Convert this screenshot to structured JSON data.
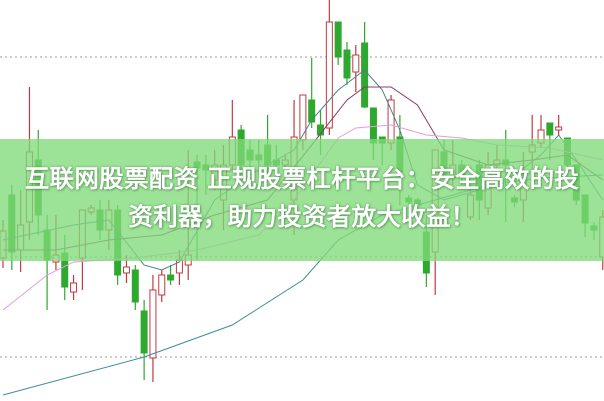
{
  "headline": {
    "line1": "互联网股票配资 正规股票杠杆平台：安全高效的投",
    "line2": "资利器，助力投资者放大收益！"
  },
  "colors": {
    "up": "#c0393f",
    "down": "#2ea82e",
    "banner": "#8fdc8a",
    "grid": "#999999",
    "ma_short": "#4f7f8f",
    "ma_mid": "#8a3a6a",
    "ma_pink": "#e59be0",
    "ma_long": "#3a8f9a"
  },
  "chart_data": {
    "type": "candlestick",
    "title": "",
    "grid": true,
    "ohlc_order": [
      "open",
      "high",
      "low",
      "close"
    ],
    "candles": [
      [
        142,
        180,
        132,
        169
      ],
      [
        205,
        215,
        130,
        148
      ],
      [
        150,
        210,
        128,
        175
      ],
      [
        178,
        313,
        160,
        248
      ],
      [
        240,
        270,
        165,
        185
      ],
      [
        170,
        185,
        90,
        140
      ],
      [
        138,
        185,
        130,
        145
      ],
      [
        147,
        165,
        100,
        113
      ],
      [
        108,
        125,
        100,
        117
      ],
      [
        142,
        190,
        110,
        190
      ],
      [
        188,
        195,
        185,
        192
      ],
      [
        190,
        200,
        160,
        170
      ],
      [
        170,
        200,
        150,
        190
      ],
      [
        190,
        195,
        115,
        125
      ],
      [
        127,
        145,
        117,
        133
      ],
      [
        130,
        135,
        90,
        98
      ],
      [
        89,
        100,
        20,
        47
      ],
      [
        42,
        125,
        18,
        110
      ],
      [
        105,
        130,
        98,
        125
      ],
      [
        125,
        135,
        115,
        120
      ],
      [
        127,
        150,
        115,
        140
      ],
      [
        135,
        250,
        120,
        145
      ],
      [
        238,
        245,
        140,
        232
      ],
      [
        235,
        245,
        205,
        230
      ],
      [
        220,
        250,
        210,
        235
      ],
      [
        200,
        255,
        170,
        235
      ],
      [
        235,
        300,
        230,
        263
      ],
      [
        270,
        275,
        225,
        235
      ],
      [
        250,
        260,
        230,
        240
      ],
      [
        245,
        260,
        225,
        240
      ],
      [
        255,
        285,
        225,
        235
      ],
      [
        240,
        255,
        225,
        235
      ],
      [
        235,
        245,
        230,
        240
      ],
      [
        200,
        300,
        165,
        263
      ],
      [
        260,
        305,
        250,
        305
      ],
      [
        300,
        342,
        272,
        278
      ],
      [
        275,
        290,
        245,
        265
      ],
      [
        272,
        400,
        265,
        378
      ],
      [
        378,
        378,
        335,
        343
      ],
      [
        350,
        358,
        315,
        322
      ],
      [
        328,
        355,
        308,
        345
      ],
      [
        357,
        378,
        292,
        293
      ],
      [
        292,
        292,
        240,
        257
      ],
      [
        263,
        263,
        235,
        257
      ],
      [
        257,
        305,
        250,
        300
      ],
      [
        263,
        285,
        195,
        228
      ],
      [
        202,
        205,
        195,
        198
      ],
      [
        200,
        202,
        185,
        195
      ],
      [
        168,
        185,
        113,
        127
      ],
      [
        148,
        250,
        105,
        250
      ],
      [
        248,
        260,
        222,
        225
      ],
      [
        222,
        260,
        215,
        235
      ],
      [
        235,
        240,
        215,
        225
      ],
      [
        183,
        215,
        180,
        205
      ],
      [
        235,
        240,
        180,
        200
      ],
      [
        192,
        248,
        185,
        235
      ],
      [
        235,
        255,
        225,
        240
      ],
      [
        240,
        270,
        178,
        235
      ],
      [
        202,
        205,
        193,
        198
      ],
      [
        200,
        248,
        178,
        220
      ],
      [
        248,
        285,
        230,
        255
      ],
      [
        257,
        285,
        252,
        270
      ],
      [
        277,
        277,
        240,
        265
      ],
      [
        270,
        285,
        265,
        273
      ],
      [
        262,
        262,
        225,
        235
      ],
      [
        235,
        235,
        195,
        200
      ],
      [
        205,
        205,
        163,
        177
      ],
      [
        174,
        178,
        160,
        170
      ],
      [
        143,
        190,
        130,
        183
      ]
    ],
    "moving_averages": [
      {
        "color_key": "ma_short",
        "points": [
          [
            0,
            160
          ],
          [
            8,
            175
          ],
          [
            12,
            180
          ],
          [
            16,
            135
          ],
          [
            18,
            130
          ],
          [
            20,
            138
          ],
          [
            24,
            200
          ],
          [
            28,
            225
          ],
          [
            33,
            250
          ],
          [
            35,
            280
          ],
          [
            38,
            310
          ],
          [
            41,
            330
          ],
          [
            43,
            310
          ],
          [
            45,
            270
          ],
          [
            47,
            215
          ],
          [
            50,
            200
          ],
          [
            54,
            210
          ],
          [
            58,
            225
          ],
          [
            61,
            245
          ],
          [
            63,
            265
          ],
          [
            65,
            240
          ],
          [
            68,
            200
          ]
        ]
      },
      {
        "color_key": "ma_mid",
        "points": [
          [
            0,
            150
          ],
          [
            6,
            150
          ],
          [
            12,
            160
          ],
          [
            18,
            165
          ],
          [
            24,
            185
          ],
          [
            30,
            200
          ],
          [
            35,
            255
          ],
          [
            39,
            300
          ],
          [
            41,
            313
          ],
          [
            44,
            313
          ],
          [
            47,
            295
          ],
          [
            50,
            250
          ],
          [
            55,
            235
          ],
          [
            60,
            240
          ],
          [
            64,
            245
          ],
          [
            68,
            220
          ]
        ]
      },
      {
        "color_key": "ma_pink",
        "points": [
          [
            0,
            90
          ],
          [
            5,
            125
          ],
          [
            8,
            138
          ],
          [
            15,
            142
          ],
          [
            22,
            150
          ],
          [
            29,
            165
          ],
          [
            33,
            200
          ],
          [
            38,
            262
          ],
          [
            40,
            272
          ],
          [
            44,
            275
          ],
          [
            48,
            265
          ],
          [
            52,
            262
          ],
          [
            56,
            255
          ],
          [
            62,
            252
          ],
          [
            68,
            240
          ]
        ]
      },
      {
        "color_key": "ma_long",
        "points": [
          [
            0,
            5
          ],
          [
            16,
            43
          ],
          [
            26,
            75
          ],
          [
            34,
            120
          ],
          [
            38,
            160
          ],
          [
            43,
            185
          ],
          [
            49,
            200
          ],
          [
            55,
            215
          ],
          [
            61,
            222
          ],
          [
            68,
            225
          ]
        ]
      }
    ],
    "gridlines": [
      343,
      143,
      43
    ]
  }
}
